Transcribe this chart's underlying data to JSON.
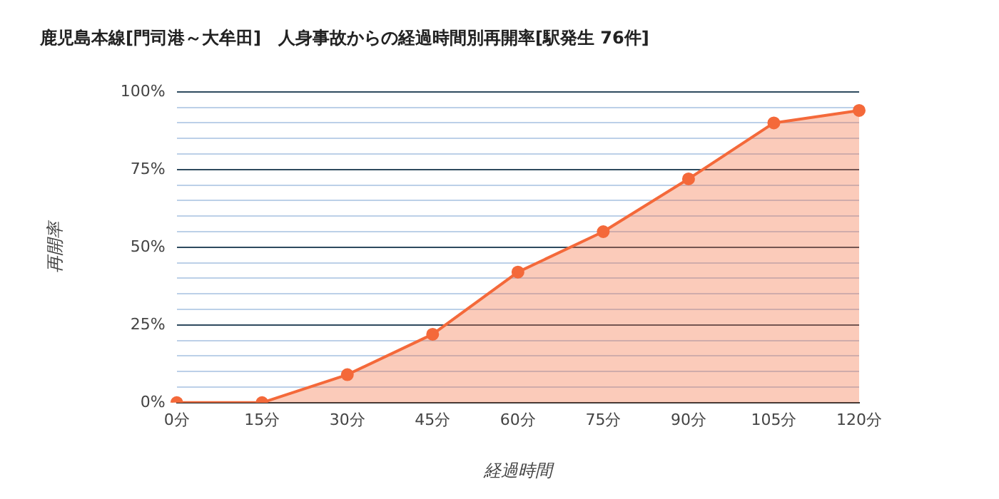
{
  "chart_data": {
    "type": "area",
    "title": "鹿児島本線[門司港～大牟田]　人身事故からの経過時間別再開率[駅発生 76件]",
    "xlabel": "経過時間",
    "ylabel": "再開率",
    "categories": [
      "0分",
      "15分",
      "30分",
      "45分",
      "60分",
      "75分",
      "90分",
      "105分",
      "120分"
    ],
    "series": [
      {
        "color": "#f4693a",
        "values": [
          0,
          0,
          9,
          22,
          42,
          55,
          72,
          90,
          94
        ]
      }
    ],
    "ylim": [
      0,
      100
    ],
    "yticks": [
      {
        "value": 0,
        "label": "0%"
      },
      {
        "value": 5,
        "label": null
      },
      {
        "value": 10,
        "label": null
      },
      {
        "value": 15,
        "label": null
      },
      {
        "value": 20,
        "label": null
      },
      {
        "value": 25,
        "label": "25%"
      },
      {
        "value": 30,
        "label": null
      },
      {
        "value": 35,
        "label": null
      },
      {
        "value": 40,
        "label": null
      },
      {
        "value": 45,
        "label": null
      },
      {
        "value": 50,
        "label": "50%"
      },
      {
        "value": 55,
        "label": null
      },
      {
        "value": 60,
        "label": null
      },
      {
        "value": 65,
        "label": null
      },
      {
        "value": 70,
        "label": null
      },
      {
        "value": 75,
        "label": "75%"
      },
      {
        "value": 80,
        "label": null
      },
      {
        "value": 85,
        "label": null
      },
      {
        "value": 90,
        "label": null
      },
      {
        "value": 95,
        "label": null
      },
      {
        "value": 100,
        "label": "100%"
      }
    ],
    "grid": "y",
    "marker": "circle",
    "line_style": "solid",
    "legend": false
  }
}
